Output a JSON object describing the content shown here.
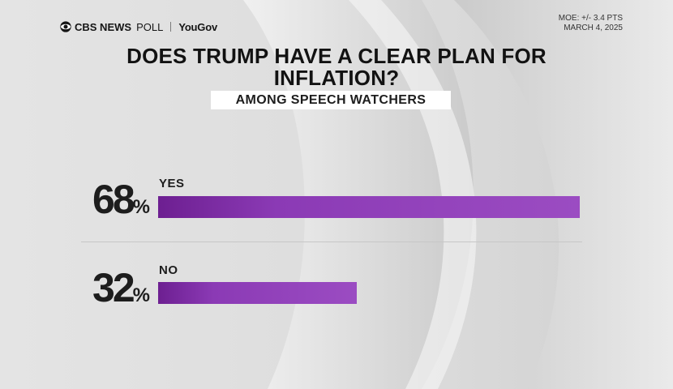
{
  "header": {
    "brand_main": "CBS NEWS",
    "brand_poll": "POLL",
    "brand_partner": "YouGov",
    "moe": "MOE: +/- 3.4 PTS",
    "date": "MARCH 4, 2025"
  },
  "icons": {
    "logo": "cbs-eye-icon"
  },
  "colors": {
    "bar_start": "#6d1f91",
    "bar_end": "#9b4cc2",
    "text": "#1d1d1d"
  },
  "chart_data": {
    "type": "bar",
    "orientation": "horizontal",
    "title": "DOES TRUMP HAVE A CLEAR PLAN FOR INFLATION?",
    "subtitle": "AMONG SPEECH WATCHERS",
    "unit": "%",
    "xlim": [
      0,
      100
    ],
    "categories": [
      "YES",
      "NO"
    ],
    "values": [
      68,
      32
    ]
  }
}
